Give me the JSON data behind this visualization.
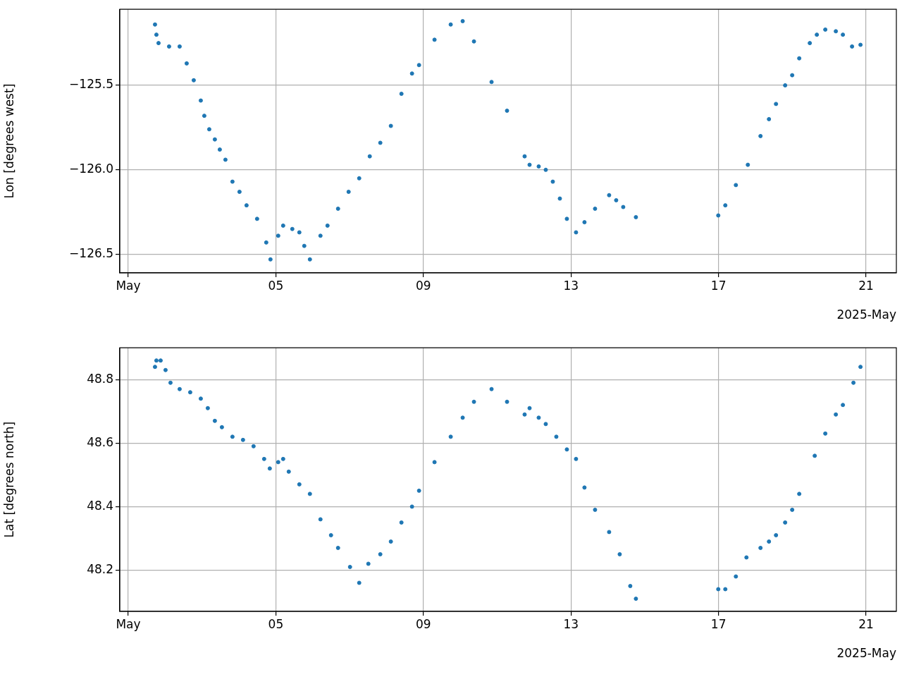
{
  "chart_data": [
    {
      "type": "scatter",
      "ylabel": "Lon [degrees west]",
      "marker": "circle",
      "grid": true,
      "legend": false,
      "xlim": [
        "2025-04-30T18:30",
        "2025-05-21T19:40"
      ],
      "xticks": [
        {
          "value": "2025-05-01",
          "label": "May"
        },
        {
          "value": "2025-05-05",
          "label": "05"
        },
        {
          "value": "2025-05-09",
          "label": "09"
        },
        {
          "value": "2025-05-13",
          "label": "13"
        },
        {
          "value": "2025-05-17",
          "label": "17"
        },
        {
          "value": "2025-05-21",
          "label": "21"
        }
      ],
      "ylim": [
        -126.61,
        -125.05
      ],
      "yticks": [
        {
          "value": -126.5,
          "label": "−126.5"
        },
        {
          "value": -126.0,
          "label": "−126.0"
        },
        {
          "value": -125.5,
          "label": "−125.5"
        }
      ],
      "annotations": [
        "2025-May"
      ],
      "series": [
        {
          "color": "#1f77b4",
          "x": [
            "2025-05-01T17:24",
            "2025-05-01T18:19",
            "2025-05-01T19:42",
            "2025-05-02T02:34",
            "2025-05-02T09:26",
            "2025-05-02T14:01",
            "2025-05-02T18:36",
            "2025-05-02T23:11",
            "2025-05-03T01:28",
            "2025-05-03T04:41",
            "2025-05-03T08:20",
            "2025-05-03T11:33",
            "2025-05-03T15:13",
            "2025-05-03T19:47",
            "2025-05-04T00:22",
            "2025-05-04T04:57",
            "2025-05-04T11:49",
            "2025-05-04T17:46",
            "2025-05-04T20:31",
            "2025-05-05T01:33",
            "2025-05-05T04:46",
            "2025-05-05T10:43",
            "2025-05-05T15:18",
            "2025-05-05T18:30",
            "2025-05-05T22:10",
            "2025-05-06T05:02",
            "2025-05-06T09:37",
            "2025-05-06T16:29",
            "2025-05-06T23:21",
            "2025-05-07T06:14",
            "2025-05-07T13:06",
            "2025-05-07T19:58",
            "2025-05-08T02:50",
            "2025-05-08T09:43",
            "2025-05-08T16:35",
            "2025-05-08T21:10",
            "2025-05-09T07:14",
            "2025-05-09T17:46",
            "2025-05-10T01:33",
            "2025-05-10T08:53",
            "2025-05-10T20:20",
            "2025-05-11T06:24",
            "2025-05-11T17:51",
            "2025-05-11T21:04",
            "2025-05-12T03:01",
            "2025-05-12T07:36",
            "2025-05-12T12:11",
            "2025-05-12T16:46",
            "2025-05-12T21:20",
            "2025-05-13T03:17",
            "2025-05-13T08:47",
            "2025-05-13T15:40",
            "2025-05-14T00:49",
            "2025-05-14T05:24",
            "2025-05-14T09:59",
            "2025-05-14T18:14",
            "2025-05-16T23:49",
            "2025-05-17T04:24",
            "2025-05-17T11:16",
            "2025-05-17T19:03",
            "2025-05-18T03:17",
            "2025-05-18T08:47",
            "2025-05-18T13:22",
            "2025-05-18T19:19",
            "2025-05-18T23:54",
            "2025-05-19T04:29",
            "2025-05-19T11:21",
            "2025-05-19T15:56",
            "2025-05-19T21:26",
            "2025-05-20T04:18",
            "2025-05-20T08:53",
            "2025-05-20T14:50",
            "2025-05-20T20:20"
          ],
          "values": [
            -125.14,
            -125.2,
            -125.25,
            -125.27,
            -125.27,
            -125.37,
            -125.47,
            -125.59,
            -125.68,
            -125.76,
            -125.82,
            -125.88,
            -125.94,
            -126.07,
            -126.13,
            -126.21,
            -126.29,
            -126.43,
            -126.53,
            -126.39,
            -126.33,
            -126.35,
            -126.37,
            -126.45,
            -126.53,
            -126.39,
            -126.33,
            -126.23,
            -126.13,
            -126.05,
            -125.92,
            -125.84,
            -125.74,
            -125.55,
            -125.43,
            -125.38,
            -125.23,
            -125.14,
            -125.12,
            -125.24,
            -125.48,
            -125.65,
            -125.92,
            -125.97,
            -125.98,
            -126.0,
            -126.07,
            -126.17,
            -126.29,
            -126.37,
            -126.31,
            -126.23,
            -126.15,
            -126.18,
            -126.22,
            -126.28,
            -126.27,
            -126.21,
            -126.09,
            -125.97,
            -125.8,
            -125.7,
            -125.61,
            -125.5,
            -125.44,
            -125.34,
            -125.25,
            -125.2,
            -125.17,
            -125.18,
            -125.2,
            -125.27,
            -125.26
          ]
        }
      ]
    },
    {
      "type": "scatter",
      "ylabel": "Lat [degrees north]",
      "marker": "circle",
      "grid": true,
      "legend": false,
      "xlim": [
        "2025-04-30T18:30",
        "2025-05-21T19:40"
      ],
      "xticks": [
        {
          "value": "2025-05-01",
          "label": "May"
        },
        {
          "value": "2025-05-05",
          "label": "05"
        },
        {
          "value": "2025-05-09",
          "label": "09"
        },
        {
          "value": "2025-05-13",
          "label": "13"
        },
        {
          "value": "2025-05-17",
          "label": "17"
        },
        {
          "value": "2025-05-21",
          "label": "21"
        }
      ],
      "ylim": [
        48.07,
        48.9
      ],
      "yticks": [
        48.2,
        48.4,
        48.6,
        48.8
      ],
      "annotations": [
        "2025-May"
      ],
      "series": [
        {
          "color": "#1f77b4",
          "x": [
            "2025-05-01T17:24",
            "2025-05-01T18:19",
            "2025-05-01T21:04",
            "2025-05-02T00:16",
            "2025-05-02T03:29",
            "2025-05-02T09:26",
            "2025-05-02T16:18",
            "2025-05-02T23:11",
            "2025-05-03T03:45",
            "2025-05-03T08:20",
            "2025-05-03T12:55",
            "2025-05-03T19:47",
            "2025-05-04T02:39",
            "2025-05-04T09:31",
            "2025-05-04T16:24",
            "2025-05-04T20:04",
            "2025-05-05T01:33",
            "2025-05-05T04:46",
            "2025-05-05T08:25",
            "2025-05-05T15:18",
            "2025-05-05T22:10",
            "2025-05-06T05:02",
            "2025-05-06T11:54",
            "2025-05-06T16:29",
            "2025-05-07T00:16",
            "2025-05-07T06:14",
            "2025-05-07T12:11",
            "2025-05-07T19:58",
            "2025-05-08T02:50",
            "2025-05-08T09:43",
            "2025-05-08T16:35",
            "2025-05-08T21:10",
            "2025-05-09T07:14",
            "2025-05-09T17:46",
            "2025-05-10T01:33",
            "2025-05-10T08:53",
            "2025-05-10T20:20",
            "2025-05-11T06:24",
            "2025-05-11T17:51",
            "2025-05-11T21:04",
            "2025-05-12T03:01",
            "2025-05-12T07:36",
            "2025-05-12T14:28",
            "2025-05-12T21:20",
            "2025-05-13T03:17",
            "2025-05-13T08:47",
            "2025-05-13T15:40",
            "2025-05-14T00:49",
            "2025-05-14T07:42",
            "2025-05-14T14:34",
            "2025-05-14T18:14",
            "2025-05-16T23:49",
            "2025-05-17T04:24",
            "2025-05-17T11:16",
            "2025-05-17T18:09",
            "2025-05-18T03:17",
            "2025-05-18T08:47",
            "2025-05-18T13:22",
            "2025-05-18T19:19",
            "2025-05-18T23:54",
            "2025-05-19T04:29",
            "2025-05-19T14:34",
            "2025-05-19T21:26",
            "2025-05-20T04:18",
            "2025-05-20T08:53",
            "2025-05-20T15:45",
            "2025-05-20T20:20"
          ],
          "values": [
            48.84,
            48.86,
            48.86,
            48.83,
            48.79,
            48.77,
            48.76,
            48.74,
            48.71,
            48.67,
            48.65,
            48.62,
            48.61,
            48.59,
            48.55,
            48.52,
            48.54,
            48.55,
            48.51,
            48.47,
            48.44,
            48.36,
            48.31,
            48.27,
            48.21,
            48.16,
            48.22,
            48.25,
            48.29,
            48.35,
            48.4,
            48.45,
            48.54,
            48.62,
            48.68,
            48.73,
            48.77,
            48.73,
            48.69,
            48.71,
            48.68,
            48.66,
            48.62,
            48.58,
            48.55,
            48.46,
            48.39,
            48.32,
            48.25,
            48.15,
            48.11,
            48.14,
            48.14,
            48.18,
            48.24,
            48.27,
            48.29,
            48.31,
            48.35,
            48.39,
            48.44,
            48.56,
            48.63,
            48.69,
            48.72,
            48.79,
            48.84
          ]
        }
      ]
    }
  ]
}
